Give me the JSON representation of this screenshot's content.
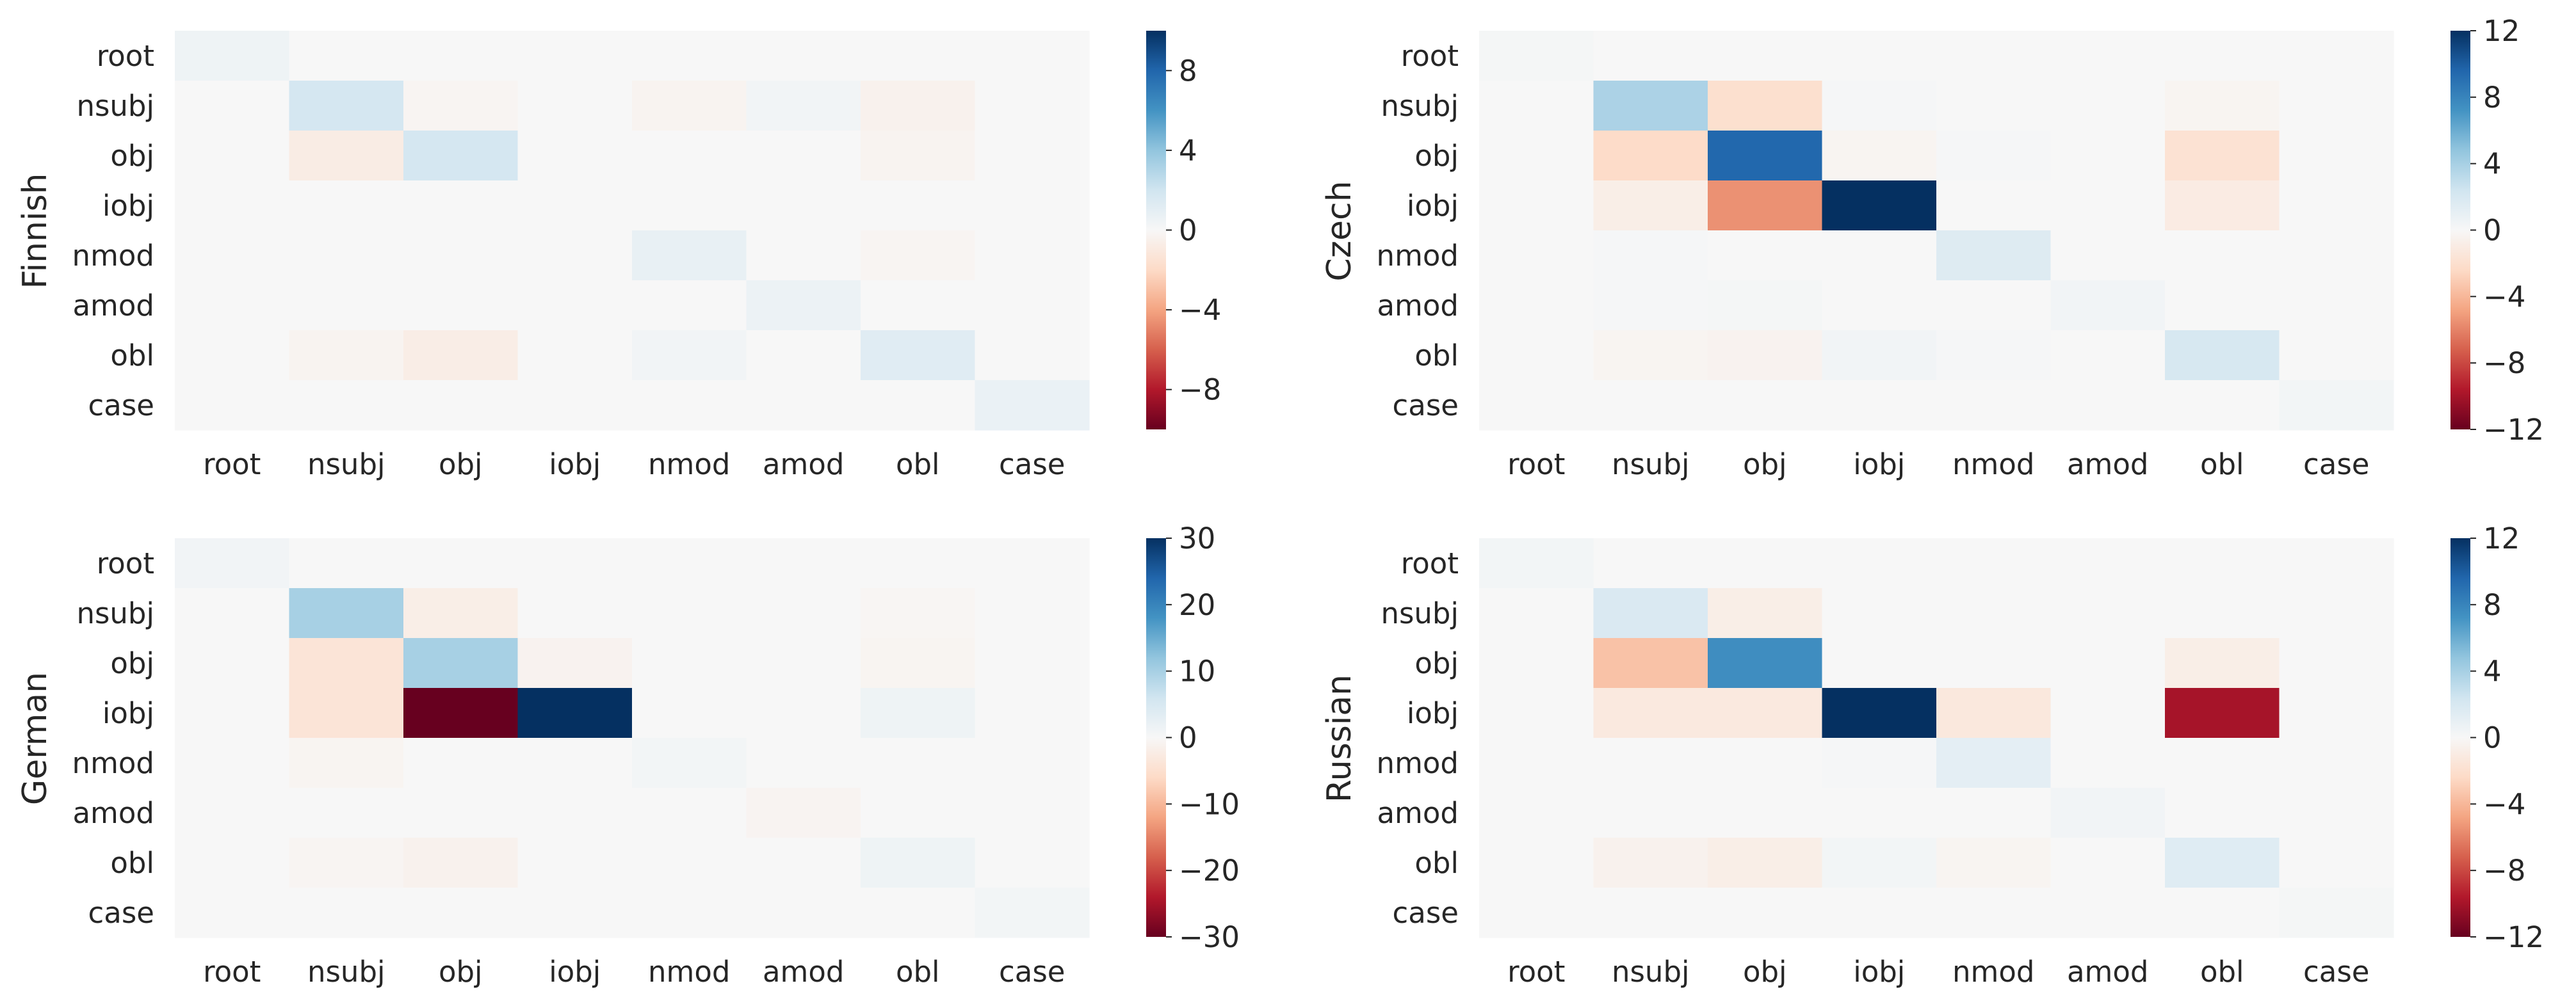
{
  "chart_data": [
    {
      "type": "heatmap",
      "ylabel": "Finnish",
      "x_labels": [
        "root",
        "nsubj",
        "obj",
        "iobj",
        "nmod",
        "amod",
        "obl",
        "case"
      ],
      "y_labels": [
        "root",
        "nsubj",
        "obj",
        "iobj",
        "nmod",
        "amod",
        "obl",
        "case"
      ],
      "values": [
        [
          0.5,
          0,
          0,
          0,
          0,
          0,
          0,
          0
        ],
        [
          0,
          1.8,
          -0.2,
          0,
          -0.3,
          0.3,
          -0.4,
          0
        ],
        [
          0,
          -0.8,
          1.8,
          0,
          0,
          0,
          -0.3,
          0
        ],
        [
          0,
          0,
          0,
          0,
          0,
          0,
          0,
          0
        ],
        [
          0,
          0,
          0,
          0,
          0.8,
          0,
          -0.2,
          0
        ],
        [
          0,
          0,
          0,
          0,
          0,
          0.6,
          0,
          0
        ],
        [
          0,
          -0.3,
          -0.7,
          0,
          0.3,
          0,
          1.2,
          0
        ],
        [
          0,
          0,
          0,
          0,
          0,
          0,
          0,
          0.7
        ]
      ],
      "colorbar": {
        "range": [
          -10,
          10
        ],
        "ticks": [
          -8,
          -4,
          0,
          4,
          8
        ]
      }
    },
    {
      "type": "heatmap",
      "ylabel": "Czech",
      "x_labels": [
        "root",
        "nsubj",
        "obj",
        "iobj",
        "nmod",
        "amod",
        "obl",
        "case"
      ],
      "y_labels": [
        "root",
        "nsubj",
        "obj",
        "iobj",
        "nmod",
        "amod",
        "obl",
        "case"
      ],
      "values": [
        [
          0.2,
          0,
          0,
          0,
          0,
          0,
          0,
          0
        ],
        [
          0,
          3.8,
          -2.0,
          0.1,
          0,
          0,
          -0.3,
          0
        ],
        [
          0,
          -2.3,
          9.5,
          -0.3,
          0.1,
          0,
          -1.8,
          0
        ],
        [
          0,
          -0.8,
          -5.5,
          12,
          0,
          0,
          -1.0,
          0
        ],
        [
          0,
          0.1,
          0,
          0,
          1.6,
          0,
          0,
          0
        ],
        [
          0,
          0.1,
          0.2,
          0,
          0,
          0.4,
          0,
          0
        ],
        [
          0,
          -0.3,
          -0.4,
          0.4,
          0.1,
          0,
          2.0,
          0
        ],
        [
          0,
          0,
          0,
          0,
          0,
          0,
          0,
          0.3
        ]
      ],
      "colorbar": {
        "range": [
          -12,
          12
        ],
        "ticks": [
          -12,
          -8,
          -4,
          0,
          4,
          8,
          12
        ]
      }
    },
    {
      "type": "heatmap",
      "ylabel": "German",
      "x_labels": [
        "root",
        "nsubj",
        "obj",
        "iobj",
        "nmod",
        "amod",
        "obl",
        "case"
      ],
      "y_labels": [
        "root",
        "nsubj",
        "obj",
        "iobj",
        "nmod",
        "amod",
        "obl",
        "case"
      ],
      "values": [
        [
          1.0,
          0,
          0,
          0,
          0,
          0,
          0,
          0
        ],
        [
          0,
          10,
          -2.0,
          0,
          0,
          0,
          -0.5,
          0
        ],
        [
          0,
          -4.0,
          10,
          -1.0,
          0,
          0,
          -0.7,
          0
        ],
        [
          0,
          -4.0,
          -30,
          30,
          0,
          0,
          1.5,
          0
        ],
        [
          0,
          -0.7,
          0,
          0,
          0.8,
          0,
          0,
          0
        ],
        [
          0,
          0,
          0,
          0,
          0,
          -0.8,
          0,
          0
        ],
        [
          0,
          -0.6,
          -1.2,
          0,
          0,
          0,
          1.5,
          0
        ],
        [
          0,
          0,
          0,
          0,
          0,
          0,
          0,
          0.8
        ]
      ],
      "colorbar": {
        "range": [
          -30,
          30
        ],
        "ticks": [
          -30,
          -20,
          -10,
          0,
          10,
          20,
          30
        ]
      }
    },
    {
      "type": "heatmap",
      "ylabel": "Russian",
      "x_labels": [
        "root",
        "nsubj",
        "obj",
        "iobj",
        "nmod",
        "amod",
        "obl",
        "case"
      ],
      "y_labels": [
        "root",
        "nsubj",
        "obj",
        "iobj",
        "nmod",
        "amod",
        "obl",
        "case"
      ],
      "values": [
        [
          0.3,
          0,
          0,
          0,
          0,
          0,
          0,
          0
        ],
        [
          0,
          1.8,
          -0.8,
          0,
          0,
          0,
          0,
          0
        ],
        [
          0,
          -3.5,
          7.5,
          0,
          0,
          0,
          -0.8,
          0
        ],
        [
          0,
          -1.2,
          -1.2,
          12,
          -1.3,
          0,
          -10,
          0
        ],
        [
          0,
          0,
          0,
          0.1,
          1.2,
          0,
          0,
          0
        ],
        [
          0,
          0,
          0,
          0,
          0,
          0.4,
          0,
          0
        ],
        [
          0,
          -0.5,
          -0.8,
          0.3,
          -0.3,
          0,
          1.5,
          0
        ],
        [
          0,
          0,
          0,
          0,
          0,
          0,
          0,
          0.2
        ]
      ],
      "colorbar": {
        "range": [
          -12,
          12
        ],
        "ticks": [
          -12,
          -8,
          -4,
          0,
          4,
          8,
          12
        ]
      }
    }
  ]
}
